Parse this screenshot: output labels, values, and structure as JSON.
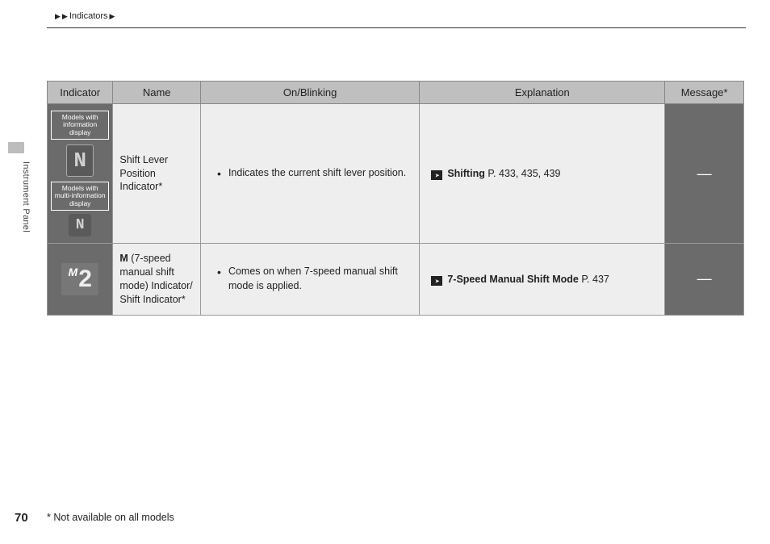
{
  "breadcrumb": {
    "label": "Indicators"
  },
  "side_section": "Instrument Panel",
  "columns": {
    "indicator": "Indicator",
    "name": "Name",
    "on_blinking": "On/Blinking",
    "explanation": "Explanation",
    "message": "Message*"
  },
  "rows": [
    {
      "indicator": {
        "label_top": "Models with information display",
        "glyph_top": "N",
        "label_bottom": "Models with multi-information display",
        "glyph_bottom": "N"
      },
      "name": "Shift Lever Position Indicator*",
      "on_blinking": "Indicates the current shift lever position.",
      "explanation": {
        "title": "Shifting",
        "pages": "P. 433, 435, 439"
      },
      "message": "—"
    },
    {
      "indicator": {
        "m_glyph": "M",
        "num_glyph": "2"
      },
      "name_prefix_bold": "M",
      "name_rest": " (7-speed manual shift mode) Indicator/ Shift Indicator*",
      "on_blinking": "Comes on when 7-speed manual shift mode is applied.",
      "explanation": {
        "title": "7-Speed Manual Shift Mode",
        "pages": "P. 437"
      },
      "message": "—"
    }
  ],
  "footnote": "* Not available on all models",
  "page_number": "70",
  "colors": {
    "header_bg": "#bfbfbf",
    "cell_bg": "#eeeeee",
    "dark_bg": "#6b6b6b",
    "border": "#999999",
    "text": "#222222",
    "white": "#ffffff"
  }
}
